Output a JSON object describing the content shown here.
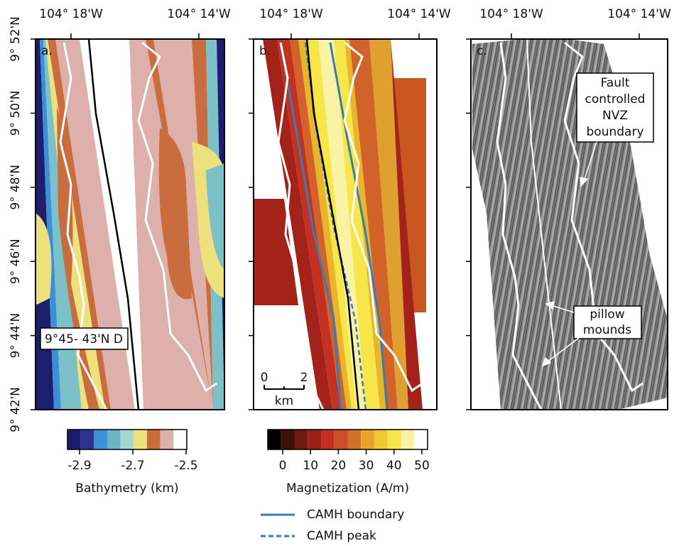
{
  "panels": [
    {
      "label": "a.",
      "x_ticks": [
        "104° 18'W",
        "104° 14'W"
      ]
    },
    {
      "label": "b.",
      "x_ticks": [
        "104° 18'W",
        "104° 14'W"
      ]
    },
    {
      "label": "c.",
      "x_ticks": [
        "104° 18'W",
        "104° 14'W"
      ]
    }
  ],
  "y_ticks": [
    "9° 52'N",
    "9° 50'N",
    "9° 48'N",
    "9° 46'N",
    "9° 44'N",
    "9° 42'N"
  ],
  "panel_a_annotation": "9°45- 43'N D",
  "scale_bar": {
    "ticks": [
      "0",
      "2"
    ],
    "unit": "km"
  },
  "panel_c_annotations": {
    "fault": [
      "Fault",
      "controlled",
      "NVZ",
      "boundary"
    ],
    "pillow": [
      "pillow",
      "mounds"
    ]
  },
  "colorbars": [
    {
      "title": "Bathymetry (km)",
      "ticks": [
        "-2.9",
        "-2.7",
        "-2.5"
      ]
    },
    {
      "title": "Magnetization (A/m)",
      "ticks": [
        "0",
        "10",
        "20",
        "30",
        "40",
        "50"
      ]
    }
  ],
  "legend": [
    "CAMH boundary",
    "CAMH peak"
  ]
}
